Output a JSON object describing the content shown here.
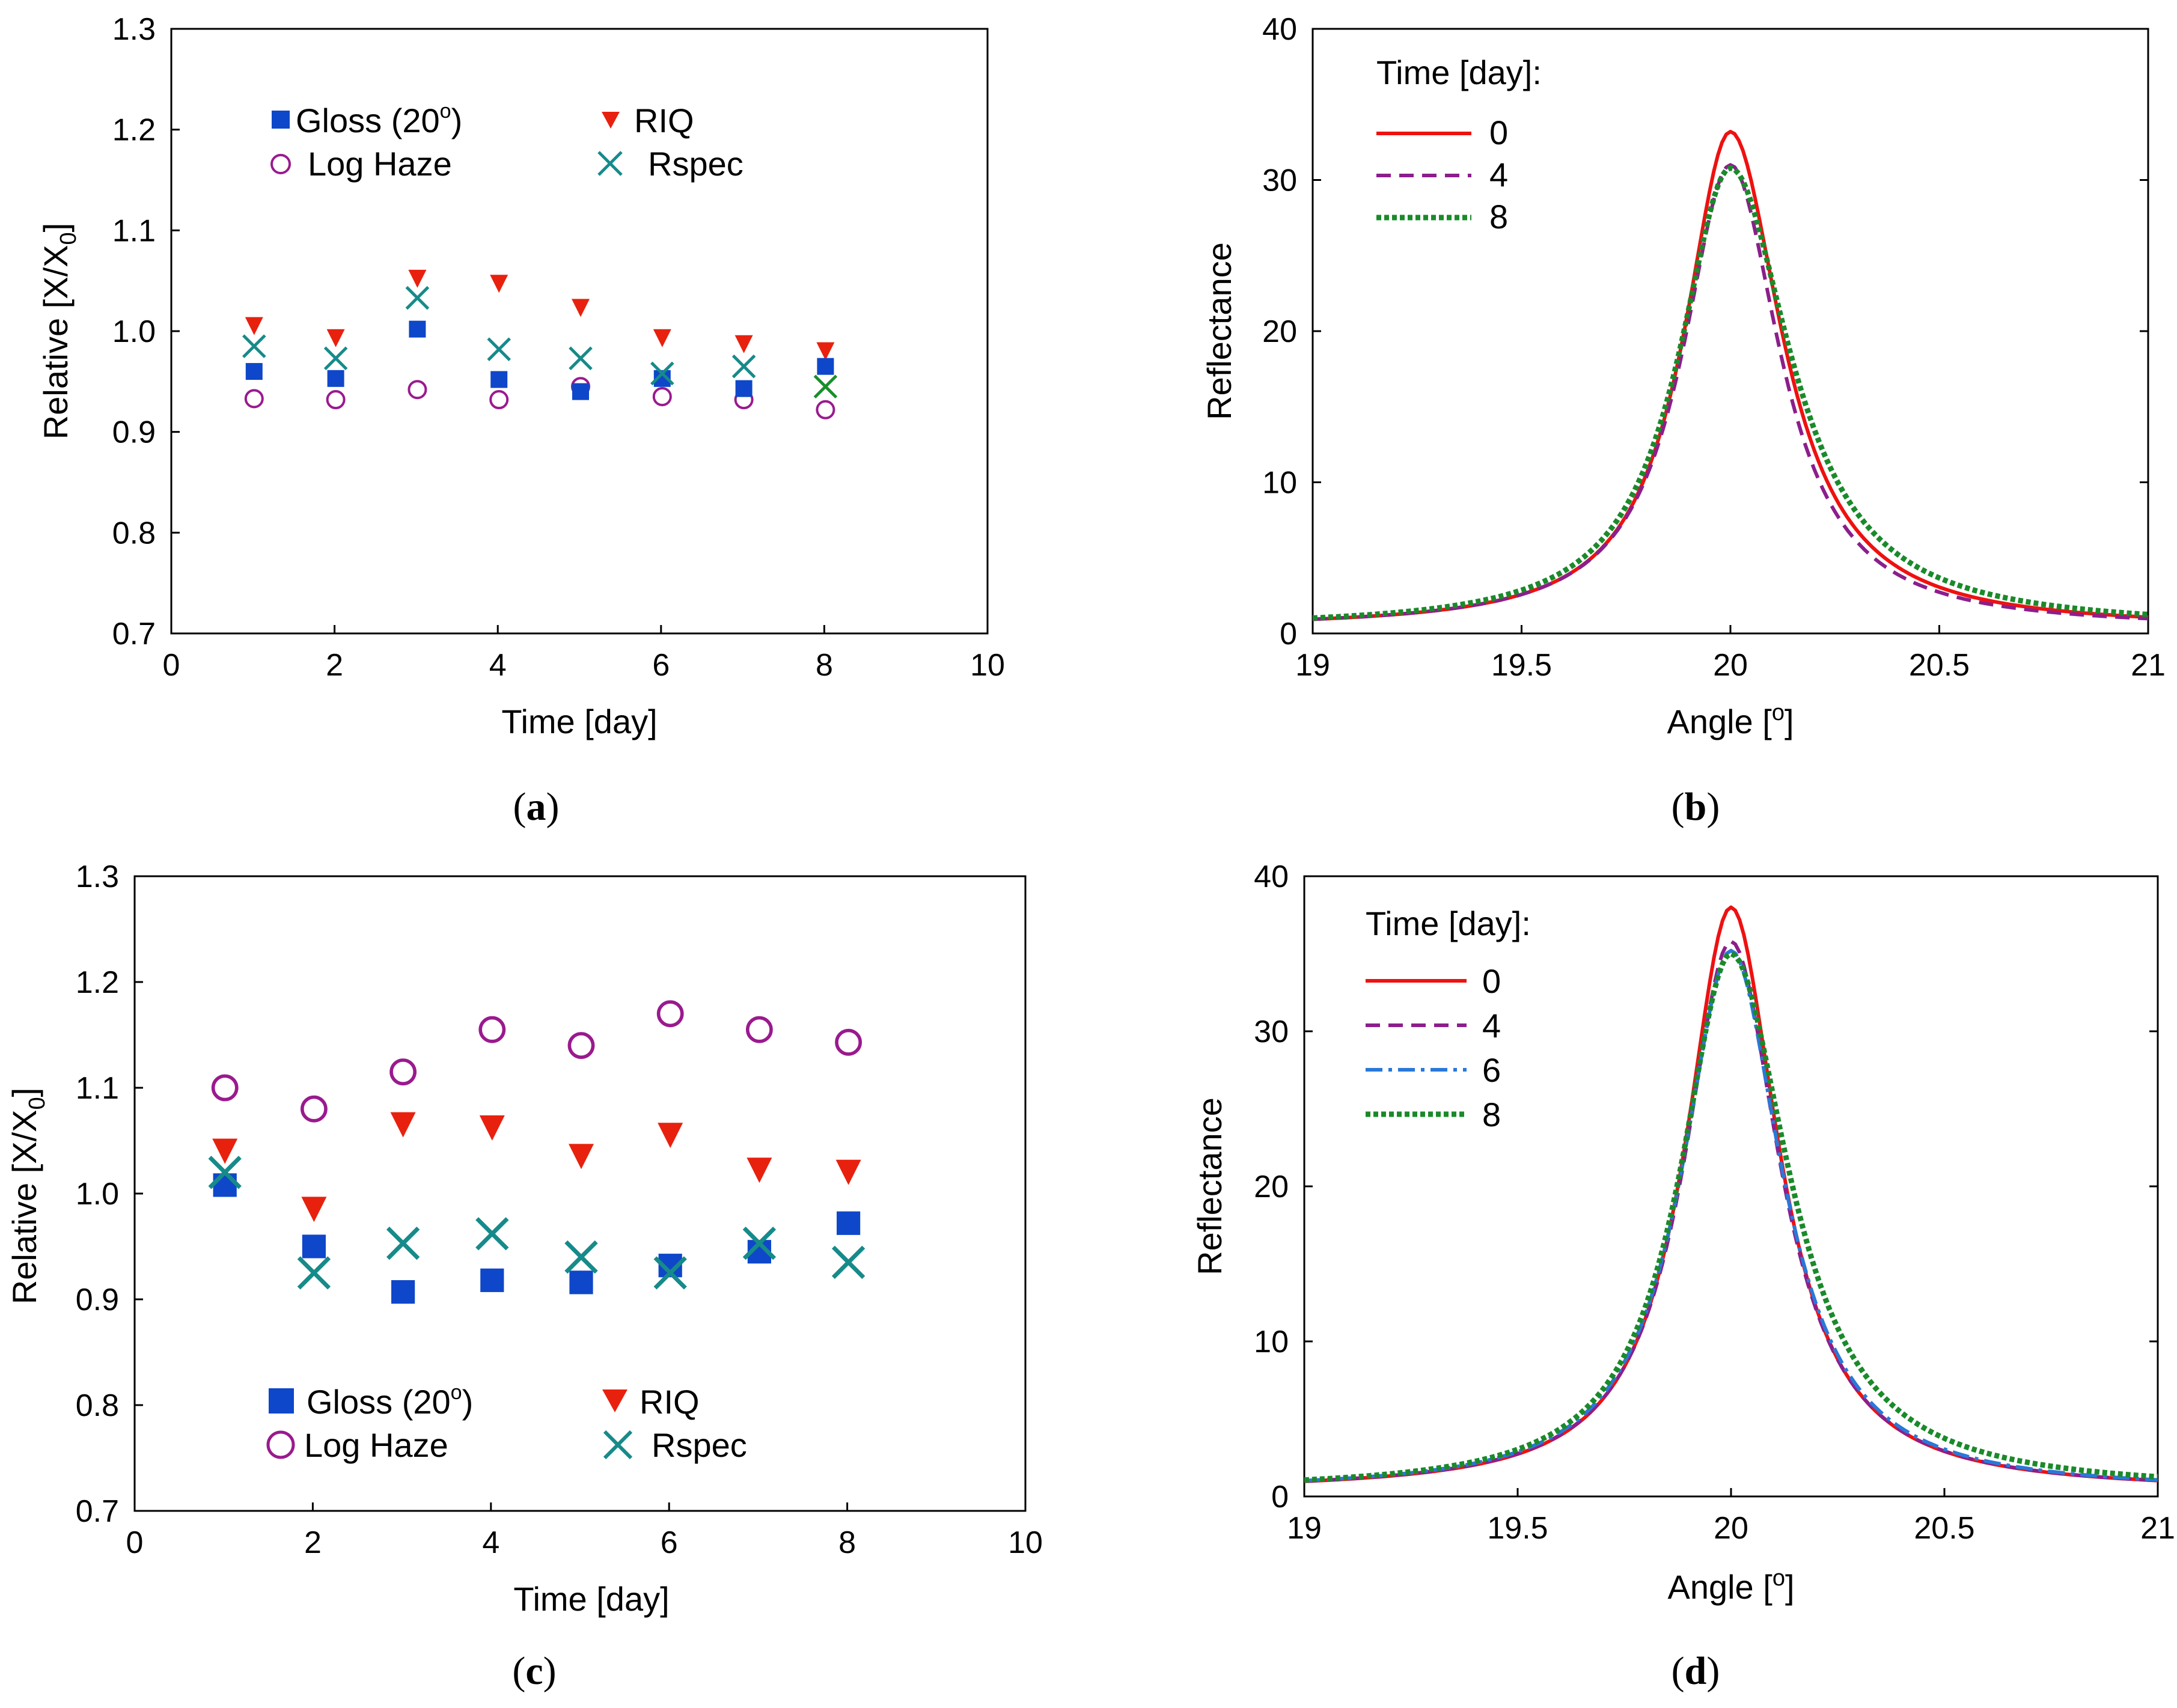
{
  "colors": {
    "gloss": "#0e47c9",
    "riq": "#e8210e",
    "haze": "#9a1a8e",
    "rspec": "#178a8a",
    "rspec_last": "#1a8f2a",
    "line_day0": "#ee1111",
    "line_day4": "#8c1e8c",
    "line_day6": "#2a78d8",
    "line_day8": "#1a8a2a"
  },
  "chart_data": [
    {
      "id": "a",
      "caption": "a",
      "type": "scatter",
      "xlabel": "Time [day]",
      "ylabel_main": "Relative [X/X",
      "ylabel_sub": "0",
      "ylabel_end": "]",
      "xlim": [
        0,
        10
      ],
      "ylim": [
        0.7,
        1.3
      ],
      "xticks": [
        "0",
        "2",
        "4",
        "6",
        "8",
        "10"
      ],
      "yticks": [
        "0.7",
        "0.8",
        "0.9",
        "1.0",
        "1.1",
        "1.2",
        "1.3"
      ],
      "legend": {
        "gloss": "Gloss (20",
        "gloss_sup": "o",
        "gloss_end": ")",
        "riq": "RIQ",
        "haze": "Log Haze",
        "rspec": "Rspec"
      },
      "x": [
        1,
        2,
        3,
        4,
        5,
        6,
        7,
        8
      ],
      "series": [
        {
          "name": "Gloss (20°)",
          "values": [
            0.96,
            0.953,
            1.002,
            0.952,
            0.94,
            0.953,
            0.943,
            0.965
          ]
        },
        {
          "name": "RIQ",
          "values": [
            1.005,
            0.993,
            1.052,
            1.047,
            1.023,
            0.993,
            0.987,
            0.98
          ]
        },
        {
          "name": "Log Haze",
          "values": [
            0.933,
            0.932,
            0.942,
            0.932,
            0.945,
            0.935,
            0.932,
            0.922
          ]
        },
        {
          "name": "Rspec",
          "values": [
            0.985,
            0.973,
            1.033,
            0.982,
            0.973,
            0.958,
            0.965,
            0.945
          ]
        }
      ]
    },
    {
      "id": "b",
      "caption": "b",
      "type": "line",
      "xlabel": "Angle [",
      "xlabel_sup": "o",
      "xlabel_end": "]",
      "ylabel": "Reflectance",
      "xlim": [
        19,
        21
      ],
      "ylim": [
        0,
        40
      ],
      "xticks": [
        "19",
        "19.5",
        "20",
        "20.5",
        "21"
      ],
      "yticks": [
        "0",
        "10",
        "20",
        "30",
        "40"
      ],
      "legend_title": "Time [day]:",
      "series": [
        {
          "name": "0",
          "peak": 33.2,
          "wl": 0.135,
          "wr": 0.15
        },
        {
          "name": "4",
          "peak": 31.0,
          "wl": 0.14,
          "wr": 0.145
        },
        {
          "name": "8",
          "peak": 30.8,
          "wl": 0.15,
          "wr": 0.175
        }
      ]
    },
    {
      "id": "c",
      "caption": "c",
      "type": "scatter",
      "xlabel": "Time [day]",
      "ylabel_main": "Relative [X/X",
      "ylabel_sub": "0",
      "ylabel_end": "]",
      "xlim": [
        0,
        10
      ],
      "ylim": [
        0.7,
        1.3
      ],
      "xticks": [
        "0",
        "2",
        "4",
        "6",
        "8",
        "10"
      ],
      "yticks": [
        "0.7",
        "0.8",
        "0.9",
        "1.0",
        "1.1",
        "1.2",
        "1.3"
      ],
      "legend": {
        "gloss": "Gloss (20",
        "gloss_sup": "o",
        "gloss_end": ")",
        "riq": "RIQ",
        "haze": "Log Haze",
        "rspec": "Rspec"
      },
      "x": [
        1,
        2,
        3,
        4,
        5,
        6,
        7,
        8
      ],
      "series": [
        {
          "name": "Gloss (20°)",
          "values": [
            1.008,
            0.95,
            0.907,
            0.918,
            0.916,
            0.932,
            0.945,
            0.972
          ]
        },
        {
          "name": "RIQ",
          "values": [
            1.04,
            0.985,
            1.065,
            1.062,
            1.035,
            1.055,
            1.022,
            1.02
          ]
        },
        {
          "name": "Log Haze",
          "values": [
            1.1,
            1.08,
            1.115,
            1.155,
            1.14,
            1.17,
            1.155,
            1.143
          ]
        },
        {
          "name": "Rspec",
          "values": [
            1.02,
            0.925,
            0.953,
            0.962,
            0.94,
            0.925,
            0.953,
            0.935
          ]
        }
      ]
    },
    {
      "id": "d",
      "caption": "d",
      "type": "line",
      "xlabel": "Angle [",
      "xlabel_sup": "o",
      "xlabel_end": "]",
      "ylabel": "Reflectance",
      "xlim": [
        19,
        21
      ],
      "ylim": [
        0,
        40
      ],
      "xticks": [
        "19",
        "19.5",
        "20",
        "20.5",
        "21"
      ],
      "yticks": [
        "0",
        "10",
        "20",
        "30",
        "40"
      ],
      "legend_title": "Time [day]:",
      "series": [
        {
          "name": "0",
          "peak": 38.0,
          "wl": 0.13,
          "wr": 0.135
        },
        {
          "name": "4",
          "peak": 35.8,
          "wl": 0.135,
          "wr": 0.14
        },
        {
          "name": "6",
          "peak": 35.2,
          "wl": 0.14,
          "wr": 0.145
        },
        {
          "name": "8",
          "peak": 35.0,
          "wl": 0.145,
          "wr": 0.165
        }
      ]
    }
  ]
}
